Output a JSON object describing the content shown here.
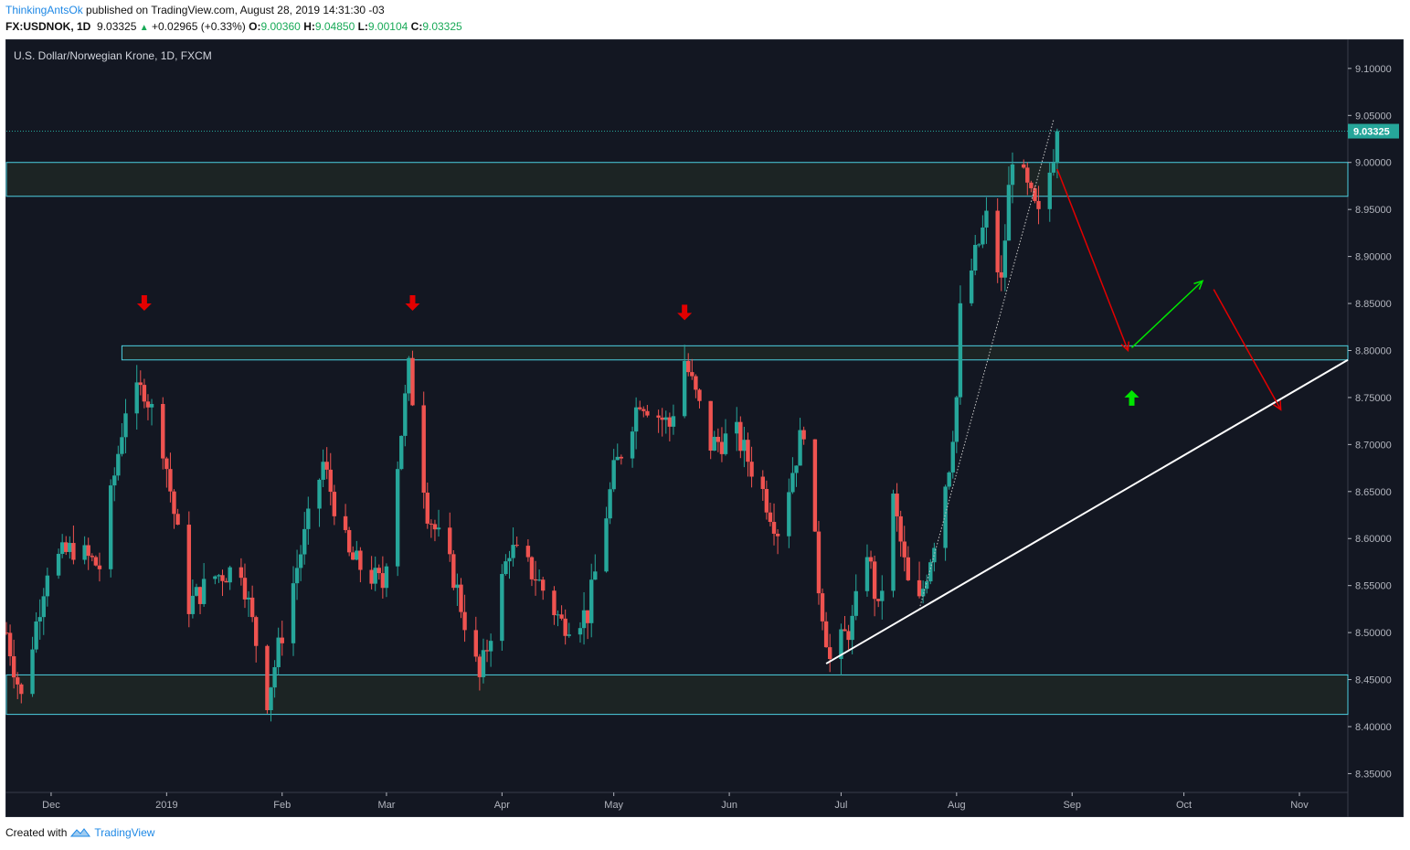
{
  "header": {
    "author": "ThinkingAntsOk",
    "published_text": "published on TradingView.com, August 28, 2019 14:31:30 -03",
    "symbol": "FX:USDNOK, 1D",
    "last": "9.03325",
    "change_arrow": "▲",
    "change": "+0.02965",
    "change_pct": "(+0.33%)",
    "o_label": "O:",
    "o": "9.00360",
    "h_label": "H:",
    "h": "9.04850",
    "l_label": "L:",
    "l": "9.00104",
    "c_label": "C:",
    "c": "9.03325"
  },
  "footer": {
    "created_with": "Created with",
    "brand": "TradingView",
    "logo_icon": "tradingview-logo-icon"
  },
  "colors": {
    "background": "#131722",
    "bull": "#26a69a",
    "bear": "#ef5350",
    "zone_line": "#4dd0e1",
    "zone_fill": "#1c2424",
    "annotation_red": "#e30000",
    "annotation_green": "#00e600",
    "trendline": "#ffffff",
    "price_tag": "#26a69a"
  },
  "chart_data": {
    "type": "candlestick",
    "title": "U.S. Dollar/Norwegian Krone, 1D, FXCM",
    "xlabel": "",
    "ylabel": "",
    "x_range": [
      "2018-11-19",
      "2019-11-14"
    ],
    "ylim": [
      8.33,
      9.13
    ],
    "y_ticks": [
      "9.10000",
      "9.05000",
      "9.00000",
      "8.95000",
      "8.90000",
      "8.85000",
      "8.80000",
      "8.75000",
      "8.70000",
      "8.65000",
      "8.60000",
      "8.55000",
      "8.50000",
      "8.45000",
      "8.40000",
      "8.35000"
    ],
    "x_ticks": [
      {
        "date": "2018-12-01",
        "label": "Dec"
      },
      {
        "date": "2019-01-01",
        "label": "2019"
      },
      {
        "date": "2019-02-01",
        "label": "Feb"
      },
      {
        "date": "2019-03-01",
        "label": "Mar"
      },
      {
        "date": "2019-04-01",
        "label": "Apr"
      },
      {
        "date": "2019-05-01",
        "label": "May"
      },
      {
        "date": "2019-06-01",
        "label": "Jun"
      },
      {
        "date": "2019-07-01",
        "label": "Jul"
      },
      {
        "date": "2019-08-01",
        "label": "Aug"
      },
      {
        "date": "2019-09-01",
        "label": "Sep"
      },
      {
        "date": "2019-10-01",
        "label": "Oct"
      },
      {
        "date": "2019-11-01",
        "label": "Nov"
      }
    ],
    "grid": false,
    "last_price": 9.03325,
    "last_price_label": "9.03325",
    "close_path": [
      {
        "date": "2018-11-19",
        "close": 8.5
      },
      {
        "date": "2018-11-23",
        "close": 8.43
      },
      {
        "date": "2018-11-30",
        "close": 8.57
      },
      {
        "date": "2018-12-07",
        "close": 8.59
      },
      {
        "date": "2018-12-14",
        "close": 8.57
      },
      {
        "date": "2018-12-21",
        "close": 8.74
      },
      {
        "date": "2018-12-26",
        "close": 8.76
      },
      {
        "date": "2018-12-31",
        "close": 8.7
      },
      {
        "date": "2019-01-07",
        "close": 8.53
      },
      {
        "date": "2019-01-14",
        "close": 8.56
      },
      {
        "date": "2019-01-21",
        "close": 8.57
      },
      {
        "date": "2019-01-28",
        "close": 8.43
      },
      {
        "date": "2019-02-05",
        "close": 8.57
      },
      {
        "date": "2019-02-12",
        "close": 8.68
      },
      {
        "date": "2019-02-19",
        "close": 8.58
      },
      {
        "date": "2019-02-28",
        "close": 8.55
      },
      {
        "date": "2019-03-07",
        "close": 8.78
      },
      {
        "date": "2019-03-12",
        "close": 8.63
      },
      {
        "date": "2019-03-19",
        "close": 8.56
      },
      {
        "date": "2019-03-26",
        "close": 8.45
      },
      {
        "date": "2019-04-03",
        "close": 8.59
      },
      {
        "date": "2019-04-10",
        "close": 8.56
      },
      {
        "date": "2019-04-17",
        "close": 8.51
      },
      {
        "date": "2019-04-24",
        "close": 8.52
      },
      {
        "date": "2019-05-01",
        "close": 8.67
      },
      {
        "date": "2019-05-08",
        "close": 8.75
      },
      {
        "date": "2019-05-16",
        "close": 8.72
      },
      {
        "date": "2019-05-20",
        "close": 8.79
      },
      {
        "date": "2019-05-27",
        "close": 8.7
      },
      {
        "date": "2019-06-03",
        "close": 8.71
      },
      {
        "date": "2019-06-10",
        "close": 8.65
      },
      {
        "date": "2019-06-14",
        "close": 8.61
      },
      {
        "date": "2019-06-21",
        "close": 8.72
      },
      {
        "date": "2019-06-25",
        "close": 8.55
      },
      {
        "date": "2019-06-28",
        "close": 8.47
      },
      {
        "date": "2019-07-04",
        "close": 8.51
      },
      {
        "date": "2019-07-08",
        "close": 8.59
      },
      {
        "date": "2019-07-11",
        "close": 8.52
      },
      {
        "date": "2019-07-15",
        "close": 8.64
      },
      {
        "date": "2019-07-19",
        "close": 8.55
      },
      {
        "date": "2019-07-22",
        "close": 8.53
      },
      {
        "date": "2019-07-26",
        "close": 8.6
      },
      {
        "date": "2019-07-30",
        "close": 8.68
      },
      {
        "date": "2019-08-01",
        "close": 8.75
      },
      {
        "date": "2019-08-02",
        "close": 8.84
      },
      {
        "date": "2019-08-06",
        "close": 8.9
      },
      {
        "date": "2019-08-09",
        "close": 8.94
      },
      {
        "date": "2019-08-13",
        "close": 8.87
      },
      {
        "date": "2019-08-15",
        "close": 8.97
      },
      {
        "date": "2019-08-16",
        "close": 9.01
      },
      {
        "date": "2019-08-20",
        "close": 8.97
      },
      {
        "date": "2019-08-23",
        "close": 8.94
      },
      {
        "date": "2019-08-26",
        "close": 8.99
      },
      {
        "date": "2019-08-28",
        "close": 9.03325
      }
    ],
    "series": [
      {
        "name": "resistance_zone",
        "type": "band",
        "from": 8.79,
        "to": 8.805
      },
      {
        "name": "upper_zone",
        "type": "band",
        "from": 8.964,
        "to": 9.0
      },
      {
        "name": "lower_zone",
        "type": "band",
        "from": 8.413,
        "to": 8.455
      },
      {
        "name": "ascending_trendline",
        "type": "line",
        "points": [
          [
            "2019-06-27",
            8.467
          ],
          [
            "2019-11-14",
            8.79
          ]
        ]
      },
      {
        "name": "steep_trendline",
        "type": "dotted-line",
        "points": [
          [
            "2019-07-22",
            8.525
          ],
          [
            "2019-08-27",
            9.045
          ]
        ]
      }
    ],
    "annotations": [
      {
        "type": "down-arrow",
        "color": "red",
        "date": "2018-12-26",
        "price": 8.85
      },
      {
        "type": "down-arrow",
        "color": "red",
        "date": "2019-03-08",
        "price": 8.85
      },
      {
        "type": "down-arrow",
        "color": "red",
        "date": "2019-05-20",
        "price": 8.84
      },
      {
        "type": "up-arrow",
        "color": "green",
        "date": "2019-09-17",
        "price": 8.75
      },
      {
        "type": "projection",
        "color": "red",
        "from": [
          "2019-08-28",
          8.993
        ],
        "to": [
          "2019-09-16",
          8.8
        ]
      },
      {
        "type": "projection",
        "color": "green",
        "from": [
          "2019-09-17",
          8.803
        ],
        "to": [
          "2019-10-06",
          8.874
        ]
      },
      {
        "type": "projection",
        "color": "red",
        "from": [
          "2019-10-09",
          8.865
        ],
        "to": [
          "2019-10-27",
          8.737
        ]
      }
    ]
  }
}
